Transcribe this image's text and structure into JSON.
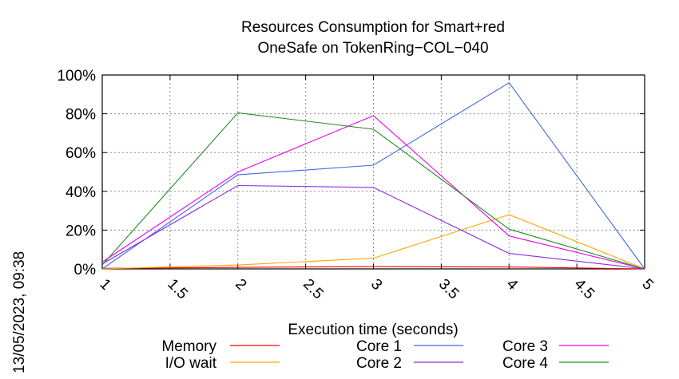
{
  "chart_data": {
    "type": "line",
    "title": [
      "Resources Consumption for Smart+red",
      "OneSafe on TokenRing−COL−040"
    ],
    "xlabel": "Execution time (seconds)",
    "ylabel": "",
    "timestamp": "13/05/2023, 09:38",
    "xlim": [
      1,
      5
    ],
    "ylim": [
      0,
      100
    ],
    "x_ticks": [
      1,
      1.5,
      2,
      2.5,
      3,
      3.5,
      4,
      4.5,
      5
    ],
    "x_tick_labels": [
      "1",
      "1.5",
      "2",
      "2.5",
      "3",
      "3.5",
      "4",
      "4.5",
      "5"
    ],
    "y_ticks": [
      0,
      20,
      40,
      60,
      80,
      100
    ],
    "y_tick_labels": [
      "0%",
      "20%",
      "40%",
      "60%",
      "80%",
      "100%"
    ],
    "grid": true,
    "legend_position": "bottom",
    "series": [
      {
        "name": "Memory",
        "color": "#ff0000",
        "x": [
          1,
          2,
          3,
          4,
          5
        ],
        "values": [
          0.3,
          0.8,
          1.2,
          1.0,
          0
        ]
      },
      {
        "name": "I/O wait",
        "color": "#ffa500",
        "x": [
          1,
          2,
          3,
          4,
          5
        ],
        "values": [
          0,
          2,
          5.5,
          28,
          0
        ]
      },
      {
        "name": "Core 1",
        "color": "#4169e1",
        "x": [
          1,
          2,
          3,
          4,
          5
        ],
        "values": [
          0,
          48.5,
          53.5,
          96,
          0
        ]
      },
      {
        "name": "Core 2",
        "color": "#8a2be2",
        "x": [
          1,
          2,
          3,
          4,
          5
        ],
        "values": [
          2.5,
          43,
          42,
          8,
          0
        ]
      },
      {
        "name": "Core 3",
        "color": "#ee00ee",
        "x": [
          1,
          2,
          3,
          4,
          5
        ],
        "values": [
          3.5,
          50,
          79,
          17,
          0
        ]
      },
      {
        "name": "Core 4",
        "color": "#228b22",
        "x": [
          1,
          2,
          3,
          4,
          5
        ],
        "values": [
          2,
          80.5,
          72,
          20.5,
          0
        ]
      }
    ]
  }
}
